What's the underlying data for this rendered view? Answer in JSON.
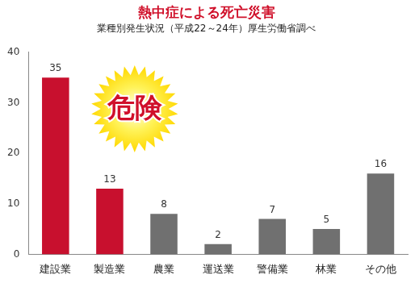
{
  "chart_data": {
    "type": "bar",
    "title": "熱中症による死亡災害",
    "subtitle": "業種別発生状況（平成22～24年）厚生労働省調べ",
    "categories": [
      "建設業",
      "製造業",
      "農業",
      "運送業",
      "警備業",
      "林業",
      "その他"
    ],
    "values": [
      35,
      13,
      8,
      2,
      7,
      5,
      16
    ],
    "colors": [
      "#c8102e",
      "#c8102e",
      "#707070",
      "#707070",
      "#707070",
      "#707070",
      "#707070"
    ],
    "ylim": [
      0,
      40
    ],
    "yticks": [
      0,
      10,
      20,
      30,
      40
    ],
    "grid": false,
    "data_labels": true,
    "annotations": [
      {
        "text": "危険"
      }
    ]
  }
}
